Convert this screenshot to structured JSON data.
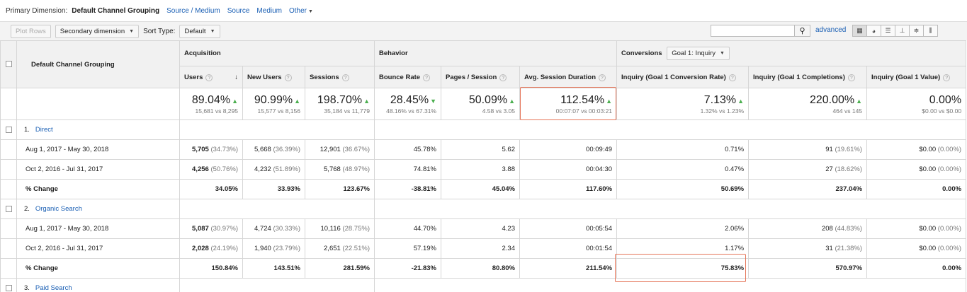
{
  "primary_dimension": {
    "label": "Primary Dimension:",
    "current": "Default Channel Grouping",
    "options": [
      "Source / Medium",
      "Source",
      "Medium"
    ],
    "other": "Other"
  },
  "toolbar": {
    "plot_rows": "Plot Rows",
    "secondary_dimension": "Secondary dimension",
    "sort_type_label": "Sort Type:",
    "sort_type_value": "Default",
    "advanced": "advanced"
  },
  "table": {
    "dimension_header": "Default Channel Grouping",
    "groups": {
      "acquisition": "Acquisition",
      "behavior": "Behavior",
      "conversions": "Conversions",
      "goal_select": "Goal 1: Inquiry"
    },
    "columns": [
      "Users",
      "New Users",
      "Sessions",
      "Bounce Rate",
      "Pages / Session",
      "Avg. Session Duration",
      "Inquiry (Goal 1 Conversion Rate)",
      "Inquiry (Goal 1 Completions)",
      "Inquiry (Goal 1 Value)"
    ],
    "totals": [
      {
        "pct": "89.04%",
        "dir": "up",
        "sub": "15,681 vs 8,295"
      },
      {
        "pct": "90.99%",
        "dir": "up",
        "sub": "15,577 vs 8,156"
      },
      {
        "pct": "198.70%",
        "dir": "up",
        "sub": "35,184 vs 11,779"
      },
      {
        "pct": "28.45%",
        "dir": "down",
        "sub": "48.16% vs 67.31%"
      },
      {
        "pct": "50.09%",
        "dir": "up",
        "sub": "4.58 vs 3.05"
      },
      {
        "pct": "112.54%",
        "dir": "up",
        "sub": "00:07:07 vs 00:03:21"
      },
      {
        "pct": "7.13%",
        "dir": "up",
        "sub": "1.32% vs 1.23%"
      },
      {
        "pct": "220.00%",
        "dir": "up",
        "sub": "464 vs 145"
      },
      {
        "pct": "0.00%",
        "dir": "",
        "sub": "$0.00 vs $0.00"
      }
    ],
    "channels": [
      {
        "index": "1.",
        "name": "Direct",
        "rows": [
          {
            "label": "Aug 1, 2017 - May 30, 2018",
            "cells": [
              [
                "5,705",
                "(34.73%)"
              ],
              [
                "5,668",
                "(36.39%)"
              ],
              [
                "12,901",
                "(36.67%)"
              ],
              [
                "45.78%",
                ""
              ],
              [
                "5.62",
                ""
              ],
              [
                "00:09:49",
                ""
              ],
              [
                "0.71%",
                ""
              ],
              [
                "91",
                "(19.61%)"
              ],
              [
                "$0.00",
                "(0.00%)"
              ]
            ]
          },
          {
            "label": "Oct 2, 2016 - Jul 31, 2017",
            "cells": [
              [
                "4,256",
                "(50.76%)"
              ],
              [
                "4,232",
                "(51.89%)"
              ],
              [
                "5,768",
                "(48.97%)"
              ],
              [
                "74.81%",
                ""
              ],
              [
                "3.88",
                ""
              ],
              [
                "00:04:30",
                ""
              ],
              [
                "0.47%",
                ""
              ],
              [
                "27",
                "(18.62%)"
              ],
              [
                "$0.00",
                "(0.00%)"
              ]
            ]
          },
          {
            "label": "% Change",
            "change": true,
            "cells": [
              [
                "34.05%",
                ""
              ],
              [
                "33.93%",
                ""
              ],
              [
                "123.67%",
                ""
              ],
              [
                "-38.81%",
                ""
              ],
              [
                "45.04%",
                ""
              ],
              [
                "117.60%",
                ""
              ],
              [
                "50.69%",
                ""
              ],
              [
                "237.04%",
                ""
              ],
              [
                "0.00%",
                ""
              ]
            ]
          }
        ]
      },
      {
        "index": "2.",
        "name": "Organic Search",
        "rows": [
          {
            "label": "Aug 1, 2017 - May 30, 2018",
            "cells": [
              [
                "5,087",
                "(30.97%)"
              ],
              [
                "4,724",
                "(30.33%)"
              ],
              [
                "10,116",
                "(28.75%)"
              ],
              [
                "44.70%",
                ""
              ],
              [
                "4.23",
                ""
              ],
              [
                "00:05:54",
                ""
              ],
              [
                "2.06%",
                ""
              ],
              [
                "208",
                "(44.83%)"
              ],
              [
                "$0.00",
                "(0.00%)"
              ]
            ]
          },
          {
            "label": "Oct 2, 2016 - Jul 31, 2017",
            "cells": [
              [
                "2,028",
                "(24.19%)"
              ],
              [
                "1,940",
                "(23.79%)"
              ],
              [
                "2,651",
                "(22.51%)"
              ],
              [
                "57.19%",
                ""
              ],
              [
                "2.34",
                ""
              ],
              [
                "00:01:54",
                ""
              ],
              [
                "1.17%",
                ""
              ],
              [
                "31",
                "(21.38%)"
              ],
              [
                "$0.00",
                "(0.00%)"
              ]
            ]
          },
          {
            "label": "% Change",
            "change": true,
            "cells": [
              [
                "150.84%",
                ""
              ],
              [
                "143.51%",
                ""
              ],
              [
                "281.59%",
                ""
              ],
              [
                "-21.83%",
                ""
              ],
              [
                "80.80%",
                ""
              ],
              [
                "211.54%",
                ""
              ],
              [
                "75.83%",
                ""
              ],
              [
                "570.97%",
                ""
              ],
              [
                "0.00%",
                ""
              ]
            ]
          }
        ]
      },
      {
        "index": "3.",
        "name": "Paid Search",
        "rows": []
      }
    ]
  },
  "colors": {
    "link": "#1a5fb4",
    "highlight": "#e5765a",
    "arrow": "#4caf50"
  }
}
